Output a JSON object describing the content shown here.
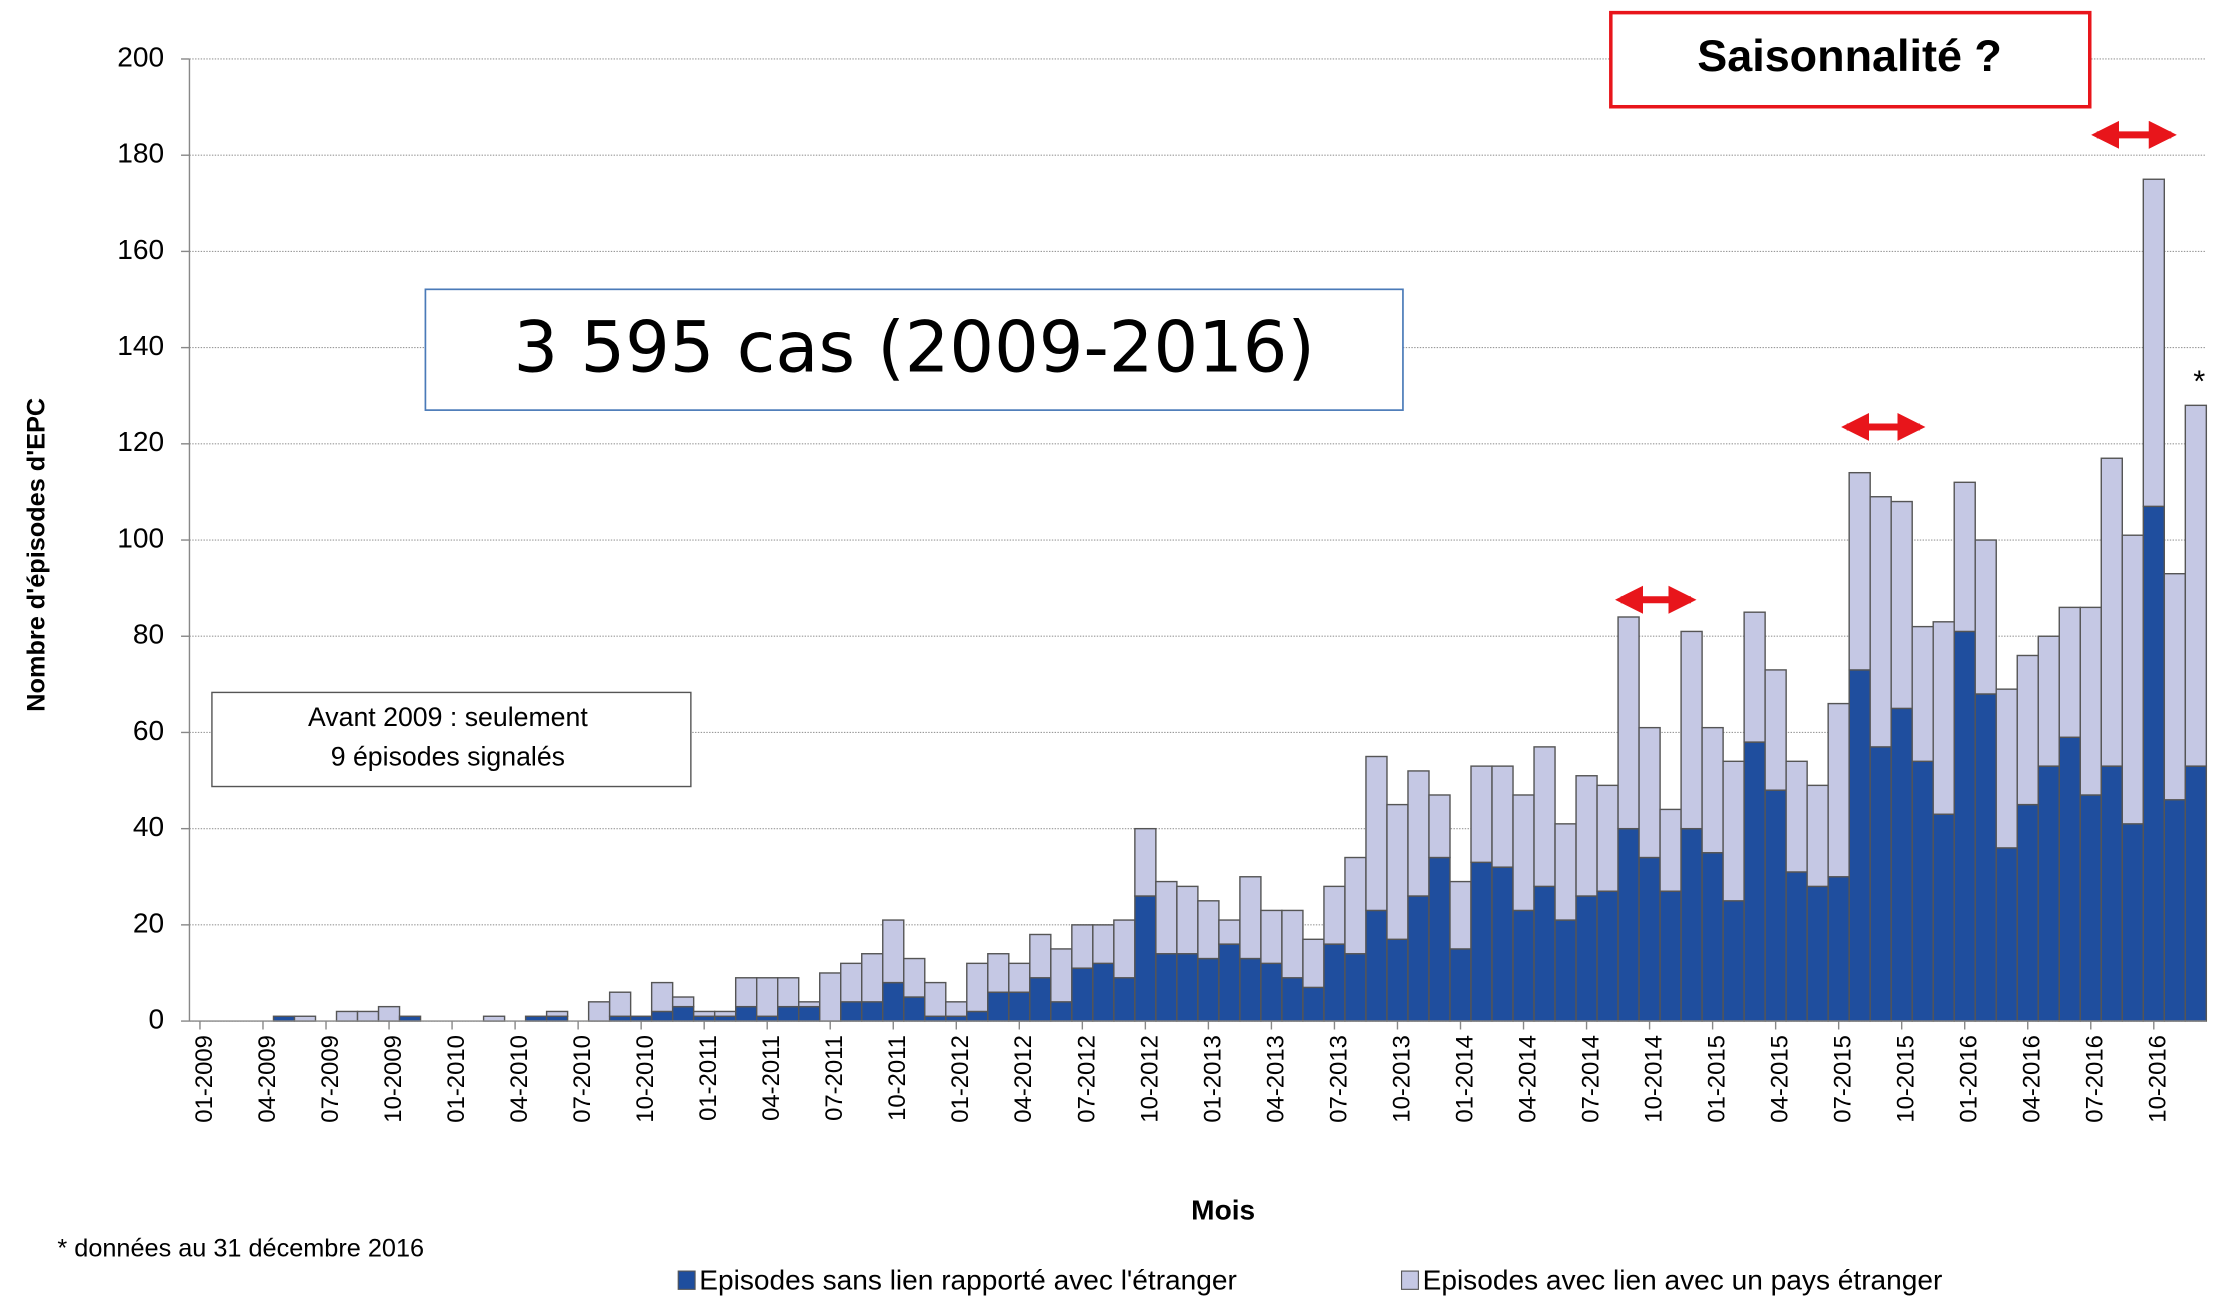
{
  "chart_data": {
    "type": "stacked_bar",
    "y_label": "Nombre d'épisodes d'EPC",
    "x_label": "Mois",
    "categories": [
      "01-2009",
      null,
      null,
      "04-2009",
      null,
      null,
      "07-2009",
      null,
      null,
      "10-2009",
      null,
      null,
      "01-2010",
      null,
      null,
      "04-2010",
      null,
      null,
      "07-2010",
      null,
      null,
      "10-2010",
      null,
      null,
      "01-2011",
      null,
      null,
      "04-2011",
      null,
      null,
      "07-2011",
      null,
      null,
      "10-2011",
      null,
      null,
      "01-2012",
      null,
      null,
      "04-2012",
      null,
      null,
      "07-2012",
      null,
      null,
      "10-2012",
      null,
      null,
      "01-2013",
      null,
      null,
      "04-2013",
      null,
      null,
      "07-2013",
      null,
      null,
      "10-2013",
      null,
      null,
      "01-2014",
      null,
      null,
      "04-2014",
      null,
      null,
      "07-2014",
      null,
      null,
      "10-2014",
      null,
      null,
      "01-2015",
      null,
      null,
      "04-2015",
      null,
      null,
      "07-2015",
      null,
      null,
      "10-2015",
      null,
      null,
      "01-2016",
      null,
      null,
      "04-2016",
      null,
      null,
      "07-2016",
      null,
      null,
      "10-2016",
      null,
      null
    ],
    "series": [
      {
        "name": "Episodes sans lien rapporté avec l'étranger",
        "color": "#1f4e9e",
        "values": [
          0,
          0,
          0,
          0,
          1,
          0,
          0,
          0,
          0,
          0,
          1,
          0,
          0,
          0,
          0,
          0,
          1,
          1,
          0,
          0,
          1,
          1,
          2,
          3,
          1,
          1,
          3,
          1,
          3,
          3,
          0,
          4,
          4,
          8,
          5,
          1,
          1,
          2,
          6,
          6,
          9,
          4,
          11,
          12,
          9,
          26,
          14,
          14,
          13,
          16,
          13,
          12,
          9,
          7,
          16,
          14,
          23,
          17,
          26,
          34,
          15,
          33,
          32,
          23,
          28,
          21,
          26,
          27,
          40,
          34,
          27,
          40,
          35,
          25,
          58,
          48,
          31,
          28,
          30,
          73,
          57,
          65,
          54,
          43,
          81,
          68,
          36,
          45,
          53,
          59,
          47,
          53,
          41,
          107,
          46,
          53
        ]
      },
      {
        "name": "Episodes avec lien avec un pays étranger",
        "color": "#c5c8e4",
        "values": [
          0,
          0,
          0,
          0,
          0,
          1,
          0,
          2,
          2,
          3,
          0,
          0,
          0,
          0,
          1,
          0,
          0,
          1,
          0,
          4,
          5,
          0,
          6,
          2,
          1,
          1,
          6,
          8,
          6,
          1,
          10,
          8,
          10,
          13,
          8,
          7,
          3,
          10,
          8,
          6,
          9,
          11,
          9,
          8,
          12,
          14,
          15,
          14,
          12,
          5,
          17,
          11,
          14,
          10,
          12,
          20,
          32,
          28,
          26,
          13,
          14,
          20,
          21,
          24,
          29,
          20,
          25,
          22,
          44,
          27,
          17,
          41,
          26,
          29,
          27,
          25,
          23,
          21,
          36,
          41,
          52,
          43,
          28,
          40,
          31,
          32,
          33,
          31,
          27,
          27,
          39,
          64,
          60,
          68,
          47,
          75
        ]
      }
    ],
    "ylim": [
      0,
      200
    ],
    "yticks": [
      0,
      20,
      40,
      60,
      80,
      100,
      120,
      140,
      160,
      180,
      200
    ],
    "grid": true,
    "annotations": {
      "question": "Saisonnalité ?",
      "total": "3 595 cas (2009-2016)",
      "before_line1": "Avant 2009 : seulement",
      "before_line2": "9 épisodes signalés",
      "star": "*",
      "footnote": "* données au 31 décembre 2016"
    }
  }
}
